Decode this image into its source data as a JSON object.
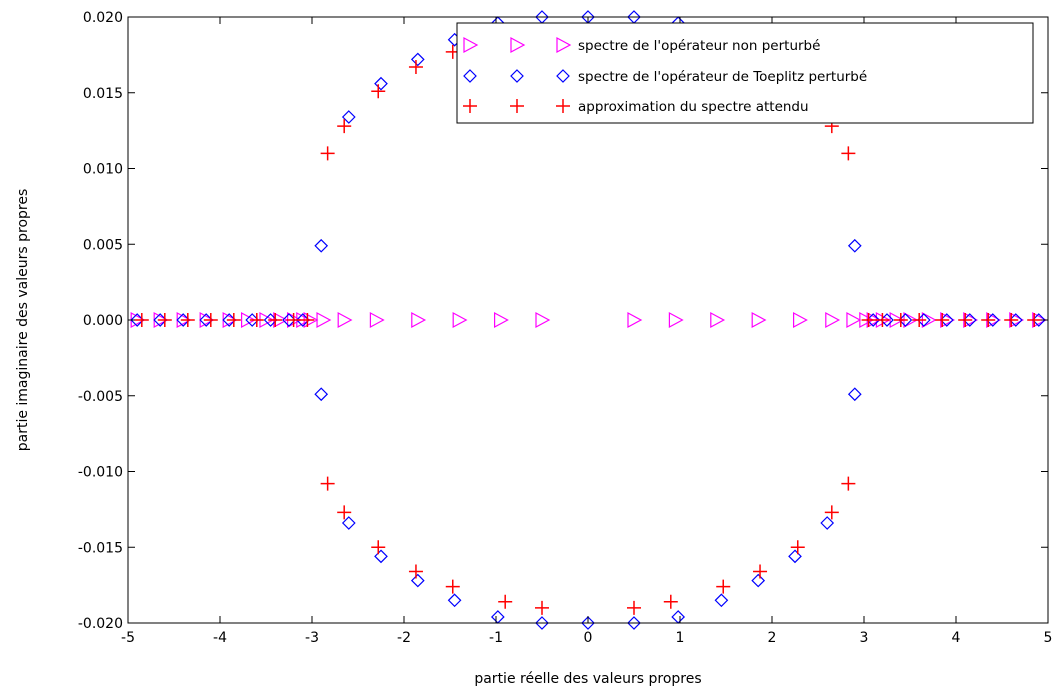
{
  "chart_data": {
    "type": "scatter",
    "title": "",
    "xlabel": "partie réelle des valeurs propres",
    "ylabel": "partie imaginaire des valeurs propres",
    "xlim": [
      -5,
      5
    ],
    "ylim": [
      -0.02,
      0.02
    ],
    "xticks": [
      -5,
      -4,
      -3,
      -2,
      -1,
      0,
      1,
      2,
      3,
      4,
      5
    ],
    "yticks": [
      -0.02,
      -0.015,
      -0.01,
      -0.005,
      0.0,
      0.005,
      0.01,
      0.015,
      0.02
    ],
    "xtick_labels": [
      "-5",
      "-4",
      "-3",
      "-2",
      "-1",
      "0",
      "1",
      "2",
      "3",
      "4",
      "5"
    ],
    "ytick_labels": [
      "-0.020",
      "-0.015",
      "-0.010",
      "-0.005",
      "0.000",
      "0.005",
      "0.010",
      "0.015",
      "0.020"
    ],
    "grid": false,
    "legend_position": "top-right",
    "series": [
      {
        "name": "spectre de l'opérateur non perturbé",
        "marker": "triangle-right",
        "color": "#ff00ff",
        "x": [
          -4.9,
          -4.65,
          -4.4,
          -4.15,
          -3.9,
          -3.7,
          -3.5,
          -3.35,
          -3.2,
          -3.1,
          -3.02,
          -2.88,
          -2.65,
          -2.3,
          -1.85,
          -1.4,
          -0.95,
          -0.5,
          0.5,
          0.95,
          1.4,
          1.85,
          2.3,
          2.65,
          2.88,
          3.02,
          3.1,
          3.2,
          3.35,
          3.5,
          3.7,
          3.9,
          4.15,
          4.4,
          4.65,
          4.9
        ],
        "y": [
          0,
          0,
          0,
          0,
          0,
          0,
          0,
          0,
          0,
          0,
          0,
          0,
          0,
          0,
          0,
          0,
          0,
          0,
          0,
          0,
          0,
          0,
          0,
          0,
          0,
          0,
          0,
          0,
          0,
          0,
          0,
          0,
          0,
          0,
          0,
          0
        ]
      },
      {
        "name": "spectre de l'opérateur de Toeplitz perturbé",
        "marker": "diamond",
        "color": "#0000ff",
        "x": [
          -4.9,
          -4.65,
          -4.4,
          -4.15,
          -3.9,
          -3.65,
          -3.45,
          -3.25,
          -3.1,
          -2.9,
          -2.6,
          -2.25,
          -1.85,
          -1.45,
          -0.98,
          -0.5,
          0,
          0.5,
          0.98,
          1.45,
          1.85,
          2.25,
          2.6,
          2.9,
          -2.9,
          -2.6,
          -2.25,
          -1.85,
          -1.45,
          -0.98,
          -0.5,
          0,
          0.5,
          0.98,
          2.9,
          3.1,
          3.25,
          3.45,
          3.65,
          3.9,
          4.15,
          4.4,
          4.65,
          4.9
        ],
        "y": [
          0,
          0,
          0,
          0,
          0,
          0,
          0,
          0,
          0,
          0.0049,
          0.0134,
          0.0156,
          0.0172,
          0.0185,
          0.0196,
          0.02,
          0.02,
          0.02,
          0.0196,
          -0.0185,
          -0.0172,
          -0.0156,
          -0.0134,
          -0.0049,
          -0.0049,
          -0.0134,
          -0.0156,
          -0.0172,
          -0.0185,
          -0.0196,
          -0.02,
          -0.02,
          -0.02,
          -0.0196,
          0.0049,
          0,
          0,
          0,
          0,
          0,
          0,
          0,
          0,
          0
        ]
      },
      {
        "name": "approximation du spectre attendu",
        "marker": "plus",
        "color": "#ff0000",
        "x": [
          -4.85,
          -4.6,
          -4.35,
          -4.1,
          -3.85,
          -3.6,
          -3.4,
          -3.2,
          -3.05,
          -2.83,
          -2.65,
          -2.28,
          -1.87,
          -1.47,
          -0.9,
          -0.5,
          2.65,
          2.83,
          -2.83,
          -2.65,
          -2.28,
          -1.87,
          -1.47,
          -0.9,
          -0.5,
          0.5,
          0.9,
          1.47,
          1.87,
          2.28,
          2.65,
          2.83,
          3.05,
          3.2,
          3.4,
          3.6,
          3.85,
          4.1,
          4.35,
          4.6,
          4.85
        ],
        "y": [
          0,
          0,
          0,
          0,
          0,
          0,
          0,
          0,
          0,
          0.011,
          0.0128,
          0.0151,
          0.0167,
          0.0177,
          0.0186,
          0.0191,
          0.0128,
          0.011,
          -0.0108,
          -0.0127,
          -0.015,
          -0.0166,
          -0.0176,
          -0.0186,
          -0.019,
          -0.019,
          -0.0186,
          -0.0176,
          -0.0166,
          -0.015,
          -0.0127,
          -0.0108,
          0,
          0,
          0,
          0,
          0,
          0,
          0,
          0,
          0
        ]
      }
    ]
  }
}
